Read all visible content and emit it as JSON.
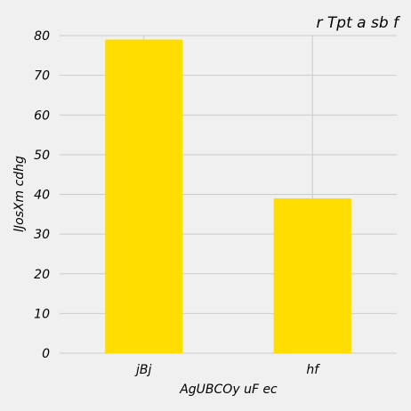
{
  "chart_data": {
    "type": "bar",
    "title": "r  Tpt a  sb f",
    "xlabel": "AgUBCOy  uF ec",
    "ylabel": "lJosXm cdhg",
    "categories": [
      "jBj",
      "hf"
    ],
    "values": [
      79,
      39
    ],
    "ylim": [
      0,
      80
    ],
    "yticks": [
      "0",
      "10",
      "20",
      "30",
      "40",
      "50",
      "60",
      "70",
      "80"
    ],
    "bar_color": "#ffdd00",
    "grid": true
  }
}
